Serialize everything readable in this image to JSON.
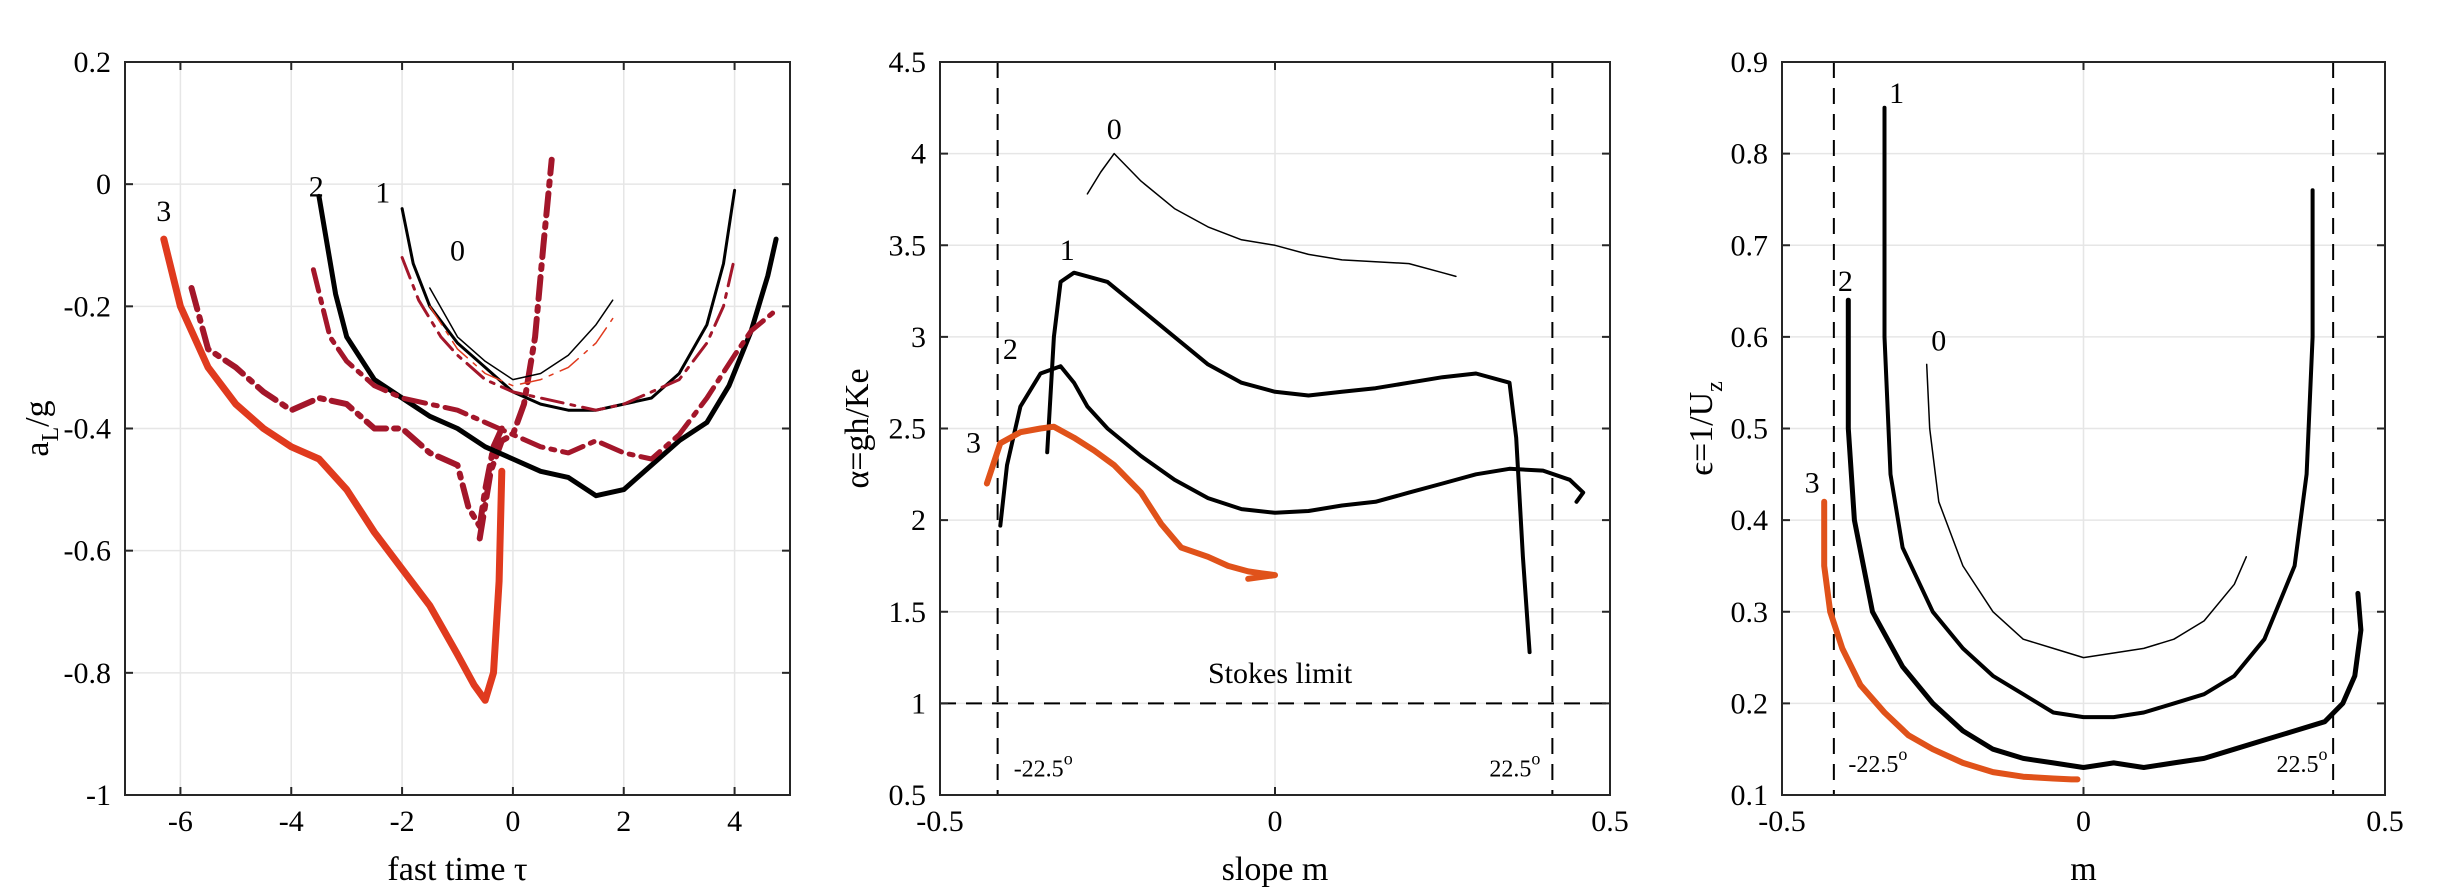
{
  "colors": {
    "black": "#000000",
    "red": "#e03a1e",
    "crimson": "#a3162a",
    "orange": "#e0521a",
    "grid": "#e6e6e6"
  },
  "chart_data": [
    {
      "type": "line",
      "title": "",
      "xlabel": "fast time τ",
      "ylabel": "a_L/g",
      "ylabel_main": "a",
      "ylabel_sub": "L",
      "ylabel_tail": "/g",
      "xlim": [
        -7,
        5
      ],
      "ylim": [
        -1,
        0.2
      ],
      "xticks": [
        -6,
        -4,
        -2,
        0,
        2,
        4
      ],
      "yticks": [
        -1,
        -0.8,
        -0.6,
        -0.4,
        -0.2,
        0,
        0.2
      ],
      "xtick_labels": [
        "-6",
        "-4",
        "-2",
        "0",
        "2",
        "4"
      ],
      "ytick_labels": [
        "-1",
        "-0.8",
        "-0.6",
        "-0.4",
        "-0.2",
        "0",
        "0.2"
      ],
      "grid": true,
      "series": [
        {
          "name": "3",
          "label": "3",
          "style": "solid",
          "color": "red",
          "width": 7,
          "label_at": [
            -6.3,
            -0.06
          ],
          "x": [
            -6.3,
            -6.0,
            -5.5,
            -5.0,
            -4.5,
            -4.0,
            -3.5,
            -3.0,
            -2.5,
            -2.0,
            -1.5,
            -1.0,
            -0.7,
            -0.5,
            -0.35,
            -0.25,
            -0.2
          ],
          "y": [
            -0.09,
            -0.2,
            -0.3,
            -0.36,
            -0.4,
            -0.43,
            -0.45,
            -0.5,
            -0.57,
            -0.63,
            -0.69,
            -0.77,
            -0.82,
            -0.845,
            -0.8,
            -0.65,
            -0.47
          ]
        },
        {
          "name": "3-dashed",
          "style": "dashdot",
          "color": "crimson",
          "width": 6,
          "x": [
            -5.8,
            -5.5,
            -5.0,
            -4.5,
            -4.0,
            -3.5,
            -3.0,
            -2.5,
            -2.0,
            -1.5,
            -1.0,
            -0.8,
            -0.6,
            -0.5,
            -0.35,
            -0.2
          ],
          "y": [
            -0.17,
            -0.27,
            -0.3,
            -0.34,
            -0.37,
            -0.35,
            -0.36,
            -0.4,
            -0.4,
            -0.44,
            -0.46,
            -0.53,
            -0.56,
            -0.5,
            -0.43,
            -0.4
          ]
        },
        {
          "name": "3-spike",
          "style": "dashdot",
          "color": "crimson",
          "width": 6,
          "x": [
            -0.6,
            -0.4,
            -0.2,
            0.0,
            0.2,
            0.4,
            0.55,
            0.7
          ],
          "y": [
            -0.58,
            -0.47,
            -0.42,
            -0.41,
            -0.36,
            -0.25,
            -0.1,
            0.04
          ]
        },
        {
          "name": "2",
          "label": "2",
          "style": "solid",
          "color": "black",
          "width": 5,
          "label_at": [
            -3.55,
            -0.02
          ],
          "x": [
            -3.5,
            -3.2,
            -3.0,
            -2.5,
            -2.0,
            -1.5,
            -1.0,
            -0.5,
            0.0,
            0.5,
            1.0,
            1.5,
            2.0,
            2.5,
            3.0,
            3.5,
            3.9,
            4.3,
            4.6,
            4.75
          ],
          "y": [
            -0.02,
            -0.18,
            -0.25,
            -0.32,
            -0.35,
            -0.38,
            -0.4,
            -0.43,
            -0.45,
            -0.47,
            -0.48,
            -0.51,
            -0.5,
            -0.46,
            -0.42,
            -0.39,
            -0.33,
            -0.24,
            -0.15,
            -0.09
          ]
        },
        {
          "name": "2-dashed",
          "style": "dashdot",
          "color": "crimson",
          "width": 5,
          "x": [
            -3.6,
            -3.3,
            -3.0,
            -2.5,
            -2.0,
            -1.5,
            -1.0,
            -0.5,
            0.0,
            0.5,
            1.0,
            1.5,
            2.0,
            2.5,
            3.0,
            3.5,
            4.0,
            4.3,
            4.7
          ],
          "y": [
            -0.14,
            -0.25,
            -0.29,
            -0.33,
            -0.35,
            -0.36,
            -0.37,
            -0.39,
            -0.41,
            -0.43,
            -0.44,
            -0.42,
            -0.44,
            -0.45,
            -0.41,
            -0.35,
            -0.28,
            -0.24,
            -0.21
          ]
        },
        {
          "name": "1",
          "label": "1",
          "style": "solid",
          "color": "black",
          "width": 3,
          "label_at": [
            -2.35,
            -0.03
          ],
          "x": [
            -2.0,
            -1.8,
            -1.5,
            -1.0,
            -0.5,
            0.0,
            0.5,
            1.0,
            1.5,
            2.0,
            2.5,
            3.0,
            3.5,
            3.8,
            4.0
          ],
          "y": [
            -0.04,
            -0.13,
            -0.2,
            -0.26,
            -0.3,
            -0.34,
            -0.36,
            -0.37,
            -0.37,
            -0.36,
            -0.35,
            -0.31,
            -0.23,
            -0.13,
            -0.01
          ]
        },
        {
          "name": "1-dashed",
          "style": "dashdot",
          "color": "crimson",
          "width": 3,
          "x": [
            -2.0,
            -1.7,
            -1.3,
            -1.0,
            -0.5,
            0.0,
            0.5,
            1.0,
            1.5,
            2.0,
            2.5,
            3.0,
            3.5,
            3.8,
            4.0
          ],
          "y": [
            -0.12,
            -0.19,
            -0.25,
            -0.28,
            -0.32,
            -0.34,
            -0.35,
            -0.36,
            -0.37,
            -0.36,
            -0.34,
            -0.32,
            -0.26,
            -0.2,
            -0.12
          ]
        },
        {
          "name": "0",
          "label": "0",
          "style": "solid",
          "color": "black",
          "width": 1.5,
          "label_at": [
            -1.0,
            -0.125
          ],
          "x": [
            -1.5,
            -1.0,
            -0.5,
            0.0,
            0.5,
            1.0,
            1.5,
            1.8
          ],
          "y": [
            -0.17,
            -0.25,
            -0.29,
            -0.32,
            -0.31,
            -0.28,
            -0.23,
            -0.19
          ]
        },
        {
          "name": "0-dashed",
          "style": "dashdot",
          "color": "red",
          "width": 1.5,
          "x": [
            -1.5,
            -1.0,
            -0.5,
            0.0,
            0.5,
            1.0,
            1.5,
            1.8
          ],
          "y": [
            -0.2,
            -0.27,
            -0.31,
            -0.33,
            -0.32,
            -0.3,
            -0.26,
            -0.22
          ]
        }
      ],
      "annotations": [],
      "vlines": [],
      "hlines": []
    },
    {
      "type": "line",
      "title": "",
      "xlabel": "slope m",
      "ylabel": "α=gh/Ke",
      "xlim": [
        -0.5,
        0.5
      ],
      "ylim": [
        0.5,
        4.5
      ],
      "xticks": [
        -0.5,
        0,
        0.5
      ],
      "yticks": [
        0.5,
        1,
        1.5,
        2,
        2.5,
        3,
        3.5,
        4,
        4.5
      ],
      "xtick_labels": [
        "-0.5",
        "0",
        "0.5"
      ],
      "ytick_labels": [
        "0.5",
        "1",
        "1.5",
        "2",
        "2.5",
        "3",
        "3.5",
        "4",
        "4.5"
      ],
      "grid": true,
      "series": [
        {
          "name": "0",
          "label": "0",
          "style": "solid",
          "color": "black",
          "width": 1.5,
          "label_at": [
            -0.24,
            4.08
          ],
          "x": [
            -0.28,
            -0.26,
            -0.24,
            -0.2,
            -0.15,
            -0.1,
            -0.05,
            0.0,
            0.05,
            0.1,
            0.15,
            0.2,
            0.25,
            0.27
          ],
          "y": [
            3.78,
            3.9,
            4.0,
            3.85,
            3.7,
            3.6,
            3.53,
            3.5,
            3.45,
            3.42,
            3.41,
            3.4,
            3.35,
            3.33
          ]
        },
        {
          "name": "1",
          "label": "1",
          "style": "solid",
          "color": "black",
          "width": 4,
          "label_at": [
            -0.31,
            3.42
          ],
          "x": [
            -0.34,
            -0.33,
            -0.32,
            -0.3,
            -0.25,
            -0.2,
            -0.15,
            -0.1,
            -0.05,
            0.0,
            0.05,
            0.1,
            0.15,
            0.2,
            0.25,
            0.3,
            0.35,
            0.36,
            0.37,
            0.38
          ],
          "y": [
            2.37,
            3.0,
            3.3,
            3.35,
            3.3,
            3.15,
            3.0,
            2.85,
            2.75,
            2.7,
            2.68,
            2.7,
            2.72,
            2.75,
            2.78,
            2.8,
            2.75,
            2.45,
            1.8,
            1.28
          ]
        },
        {
          "name": "2",
          "label": "2",
          "style": "solid",
          "color": "black",
          "width": 4,
          "label_at": [
            -0.395,
            2.88
          ],
          "x": [
            -0.41,
            -0.4,
            -0.38,
            -0.35,
            -0.32,
            -0.3,
            -0.28,
            -0.25,
            -0.2,
            -0.15,
            -0.1,
            -0.05,
            0.0,
            0.05,
            0.1,
            0.15,
            0.2,
            0.25,
            0.3,
            0.35,
            0.4,
            0.44,
            0.46,
            0.45
          ],
          "y": [
            1.97,
            2.3,
            2.62,
            2.8,
            2.84,
            2.75,
            2.62,
            2.5,
            2.35,
            2.22,
            2.12,
            2.06,
            2.04,
            2.05,
            2.08,
            2.1,
            2.15,
            2.2,
            2.25,
            2.28,
            2.27,
            2.22,
            2.15,
            2.1
          ]
        },
        {
          "name": "3",
          "label": "3",
          "style": "solid",
          "color": "orange",
          "width": 6,
          "label_at": [
            -0.45,
            2.37
          ],
          "x": [
            -0.43,
            -0.41,
            -0.38,
            -0.35,
            -0.33,
            -0.3,
            -0.27,
            -0.24,
            -0.2,
            -0.17,
            -0.14,
            -0.1,
            -0.07,
            -0.04,
            -0.02,
            0.0,
            -0.04
          ],
          "y": [
            2.2,
            2.42,
            2.48,
            2.5,
            2.51,
            2.45,
            2.38,
            2.3,
            2.15,
            1.98,
            1.85,
            1.8,
            1.75,
            1.72,
            1.71,
            1.7,
            1.68
          ]
        }
      ],
      "annotations": [
        {
          "text": "Stokes limit",
          "x": -0.1,
          "y": 1.11
        },
        {
          "text": "-22.5",
          "sup": "o",
          "x": -0.39,
          "y": 0.6
        },
        {
          "text": "22.5",
          "sup": "o",
          "x": 0.32,
          "y": 0.6
        }
      ],
      "vlines": [
        -0.414,
        0.414
      ],
      "hlines": [
        1
      ]
    },
    {
      "type": "line",
      "title": "",
      "xlabel": "m",
      "ylabel": "ϵ=1/U_z",
      "ylabel_main": "ϵ=1/U",
      "ylabel_sub": "z",
      "ylabel_tail": "",
      "xlim": [
        -0.5,
        0.5
      ],
      "ylim": [
        0.1,
        0.9
      ],
      "xticks": [
        -0.5,
        0,
        0.5
      ],
      "yticks": [
        0.1,
        0.2,
        0.3,
        0.4,
        0.5,
        0.6,
        0.7,
        0.8,
        0.9
      ],
      "xtick_labels": [
        "-0.5",
        "0",
        "0.5"
      ],
      "ytick_labels": [
        "0.1",
        "0.2",
        "0.3",
        "0.4",
        "0.5",
        "0.6",
        "0.7",
        "0.8",
        "0.9"
      ],
      "grid": true,
      "series": [
        {
          "name": "0",
          "label": "0",
          "style": "solid",
          "color": "black",
          "width": 1.5,
          "label_at": [
            -0.24,
            0.585
          ],
          "x": [
            -0.26,
            -0.255,
            -0.24,
            -0.2,
            -0.15,
            -0.1,
            -0.05,
            0.0,
            0.05,
            0.1,
            0.15,
            0.2,
            0.25,
            0.27
          ],
          "y": [
            0.57,
            0.5,
            0.42,
            0.35,
            0.3,
            0.27,
            0.26,
            0.25,
            0.255,
            0.26,
            0.27,
            0.29,
            0.33,
            0.36
          ]
        },
        {
          "name": "1",
          "label": "1",
          "style": "solid",
          "color": "black",
          "width": 4,
          "label_at": [
            -0.31,
            0.855
          ],
          "x": [
            -0.33,
            -0.33,
            -0.32,
            -0.3,
            -0.25,
            -0.2,
            -0.15,
            -0.1,
            -0.05,
            0.0,
            0.05,
            0.1,
            0.15,
            0.2,
            0.25,
            0.3,
            0.35,
            0.37,
            0.38,
            0.38
          ],
          "y": [
            0.85,
            0.6,
            0.45,
            0.37,
            0.3,
            0.26,
            0.23,
            0.21,
            0.19,
            0.185,
            0.185,
            0.19,
            0.2,
            0.21,
            0.23,
            0.27,
            0.35,
            0.45,
            0.6,
            0.76
          ]
        },
        {
          "name": "2",
          "label": "2",
          "style": "solid",
          "color": "black",
          "width": 5,
          "label_at": [
            -0.395,
            0.65
          ],
          "x": [
            -0.39,
            -0.39,
            -0.38,
            -0.35,
            -0.3,
            -0.25,
            -0.2,
            -0.15,
            -0.1,
            -0.05,
            0.0,
            0.05,
            0.1,
            0.15,
            0.2,
            0.25,
            0.3,
            0.35,
            0.4,
            0.43,
            0.45,
            0.46,
            0.455
          ],
          "y": [
            0.64,
            0.5,
            0.4,
            0.3,
            0.24,
            0.2,
            0.17,
            0.15,
            0.14,
            0.135,
            0.13,
            0.135,
            0.13,
            0.135,
            0.14,
            0.15,
            0.16,
            0.17,
            0.18,
            0.2,
            0.23,
            0.28,
            0.32
          ]
        },
        {
          "name": "3",
          "label": "3",
          "style": "solid",
          "color": "orange",
          "width": 6,
          "label_at": [
            -0.45,
            0.43
          ],
          "x": [
            -0.43,
            -0.43,
            -0.42,
            -0.4,
            -0.37,
            -0.33,
            -0.29,
            -0.25,
            -0.2,
            -0.15,
            -0.1,
            -0.05,
            -0.02,
            -0.01
          ],
          "y": [
            0.42,
            0.35,
            0.3,
            0.26,
            0.22,
            0.19,
            0.165,
            0.15,
            0.135,
            0.125,
            0.12,
            0.118,
            0.117,
            0.117
          ]
        }
      ],
      "annotations": [
        {
          "text": "-22.5",
          "sup": "o",
          "x": -0.39,
          "y": 0.125
        },
        {
          "text": "22.5",
          "sup": "o",
          "x": 0.32,
          "y": 0.125
        }
      ],
      "vlines": [
        -0.414,
        0.414
      ],
      "hlines": []
    }
  ]
}
